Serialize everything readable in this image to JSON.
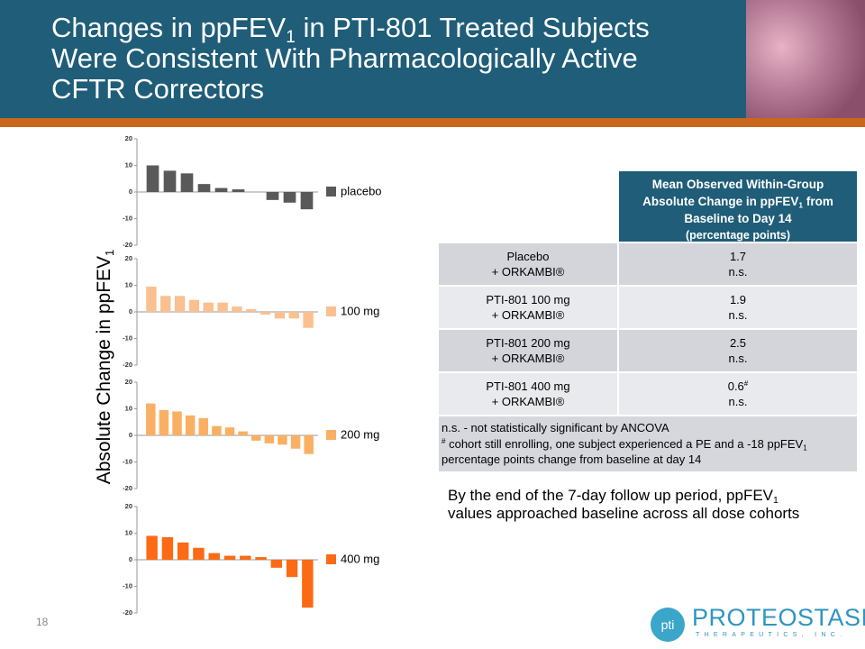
{
  "title": {
    "lines": [
      [
        {
          "t": "Changes in ppFEV"
        },
        {
          "sub": "1"
        },
        {
          "t": " in PTI-801 Treated Subjects"
        }
      ],
      [
        {
          "t": "Were Consistent With Pharmacologically Active"
        }
      ],
      [
        {
          "t": "CFTR Correctors"
        }
      ]
    ]
  },
  "y_axis_label": [
    {
      "t": "Absolute Change in ppFEV"
    },
    {
      "sub": "1"
    }
  ],
  "chart_data": [
    {
      "type": "bar",
      "series": [
        {
          "name": "placebo",
          "color": "#595959",
          "values": [
            10,
            8,
            7,
            3,
            1.5,
            1,
            0,
            -3,
            -4,
            -6.5
          ]
        }
      ],
      "ylim": [
        -20,
        20
      ],
      "yticks": [
        20,
        10,
        0,
        -10,
        -20
      ]
    },
    {
      "type": "bar",
      "series": [
        {
          "name": "100 mg",
          "color": "#fac090",
          "values": [
            9.5,
            6,
            6,
            4.5,
            3.5,
            3.5,
            2,
            1,
            -1,
            -2.5,
            -2.5,
            -6
          ]
        }
      ],
      "ylim": [
        -20,
        20
      ],
      "yticks": [
        20,
        10,
        0,
        -10,
        -20
      ]
    },
    {
      "type": "bar",
      "series": [
        {
          "name": "200 mg",
          "color": "#f9b064",
          "values": [
            12,
            9.5,
            9,
            7.5,
            6.5,
            3.5,
            3,
            1.5,
            -2,
            -3,
            -3.5,
            -5,
            -7
          ]
        }
      ],
      "ylim": [
        -20,
        20
      ],
      "yticks": [
        20,
        10,
        0,
        -10,
        -20
      ]
    },
    {
      "type": "bar",
      "series": [
        {
          "name": "400 mg",
          "color": "#fb6a15",
          "values": [
            9,
            8.5,
            6.5,
            4.5,
            2.5,
            1.5,
            1.5,
            1,
            -3,
            -6.5,
            -18
          ]
        }
      ],
      "ylim": [
        -20,
        20
      ],
      "yticks": [
        20,
        10,
        0,
        -10,
        -20
      ]
    }
  ],
  "table": {
    "header": [
      [
        {
          "t": "Mean Observed Within-Group"
        }
      ],
      [
        {
          "t": "Absolute Change in ppFEV"
        },
        {
          "sub": "1"
        },
        {
          "t": " from"
        }
      ],
      [
        {
          "t": "Baseline to Day 14"
        }
      ]
    ],
    "header_note": "(percentage points)",
    "rows": [
      {
        "label": [
          "Placebo",
          "+ ORKAMBI®"
        ],
        "value": 1.7,
        "note": "n.s."
      },
      {
        "label": [
          "PTI-801 100 mg",
          "+ ORKAMBI®"
        ],
        "value": 1.9,
        "note": "n.s."
      },
      {
        "label": [
          "PTI-801 200 mg",
          "+ ORKAMBI®"
        ],
        "value": 2.5,
        "note": "n.s."
      },
      {
        "label": [
          "PTI-801 400 mg",
          "+ ORKAMBI®"
        ],
        "value": 0.6,
        "value_sup": "#",
        "note": "n.s."
      }
    ],
    "footnote": [
      [
        {
          "t": "n.s. - not statistically significant by ANCOVA"
        }
      ],
      [
        {
          "sup": "#"
        },
        {
          "t": " cohort still enrolling, one subject experienced a PE and a -18 ppFEV"
        },
        {
          "sub": "1"
        }
      ],
      [
        {
          "t": "percentage points change from baseline at day 14"
        }
      ]
    ]
  },
  "summary": [
    {
      "t": "By the end of the 7-day follow up period, ppFEV"
    },
    {
      "sub": "1"
    },
    {
      "t": " values approached baseline across all dose cohorts"
    }
  ],
  "page_number": "18",
  "logo": {
    "mark": "pti",
    "name": "PROTEOSTASIS",
    "tagline": "THERAPEUTICS, INC."
  }
}
